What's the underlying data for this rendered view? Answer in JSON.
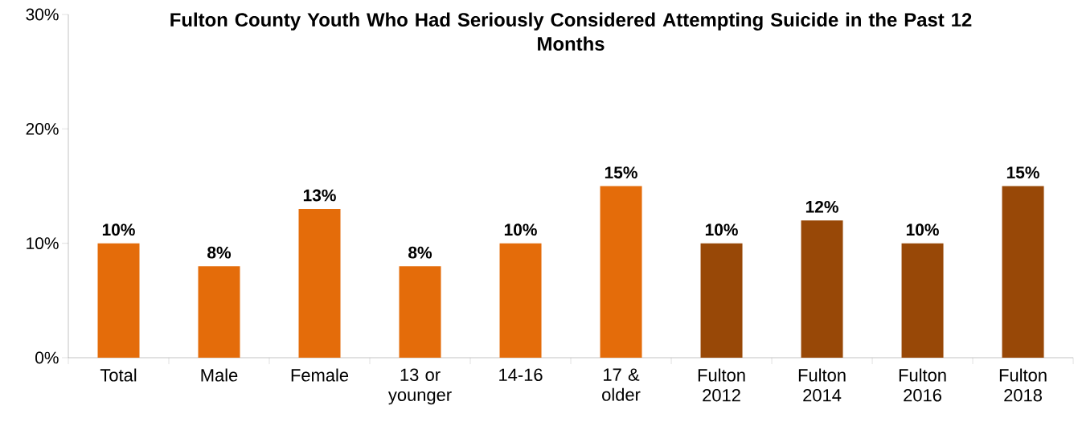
{
  "chart_data": {
    "type": "bar",
    "title": "Fulton County Youth Who Had Seriously Considered Attempting Suicide in the Past 12 Months",
    "categories": [
      "Total",
      "Male",
      "Female",
      "13 or younger",
      "14-16",
      "17 & older",
      "Fulton 2012",
      "Fulton 2014",
      "Fulton 2016",
      "Fulton 2018"
    ],
    "values": [
      10,
      8,
      13,
      8,
      10,
      15,
      10,
      12,
      10,
      15
    ],
    "value_labels": [
      "10%",
      "8%",
      "13%",
      "8%",
      "10%",
      "15%",
      "10%",
      "12%",
      "10%",
      "15%"
    ],
    "colors": [
      "#e46c0a",
      "#e46c0a",
      "#e46c0a",
      "#e46c0a",
      "#e46c0a",
      "#e46c0a",
      "#984807",
      "#984807",
      "#984807",
      "#984807"
    ],
    "ylim": [
      0,
      30
    ],
    "yticks": [
      {
        "value": 0,
        "label": "0%"
      },
      {
        "value": 10,
        "label": "10%"
      },
      {
        "value": 20,
        "label": "20%"
      },
      {
        "value": 30,
        "label": "30%"
      }
    ],
    "grid": false
  }
}
